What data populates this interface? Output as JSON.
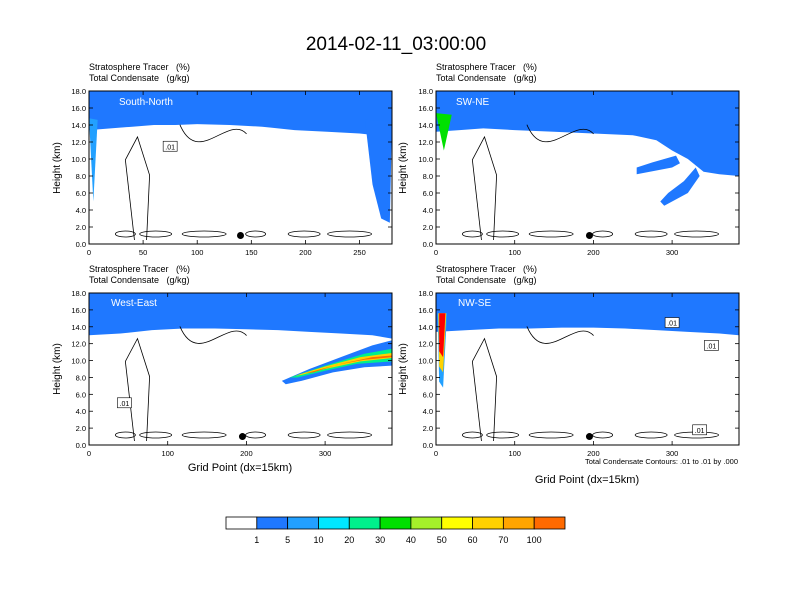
{
  "figure": {
    "title": "2014-02-11_03:00:00",
    "footnote": "Total Condensate Contours: .01 to .01 by .000"
  },
  "colors": {
    "background": "#ffffff",
    "contour_line": "#000000",
    "palette": [
      "#ffffff",
      "#1f78ff",
      "#22a0ff",
      "#00e7ff",
      "#00f08c",
      "#00e000",
      "#a5f02a",
      "#ffff00",
      "#ffd200",
      "#ffa500",
      "#ff6a00",
      "#ff0000"
    ]
  },
  "chart_data": {
    "type": "heatmap",
    "variables": {
      "fill": "Stratosphere Tracer   (%)",
      "contour": "Total Condensate   (g/kg)"
    },
    "colorbar": {
      "levels": [
        "1",
        "5",
        "10",
        "20",
        "30",
        "40",
        "50",
        "60",
        "70",
        "100"
      ],
      "bins": 11
    },
    "ylabel": "Height (km)",
    "xlabel": "Grid Point (dx=15km)",
    "ylim": [
      0,
      18
    ],
    "yticks": [
      "0.0",
      "2.0",
      "4.0",
      "6.0",
      "8.0",
      "10.0",
      "12.0",
      "14.0",
      "16.0",
      "18.0"
    ],
    "panels": [
      {
        "label": "South-North",
        "xlim": [
          0,
          280
        ],
        "xticks": [
          0,
          50,
          100,
          150,
          200,
          250
        ],
        "marker": {
          "x": 140,
          "y": 1.0
        },
        "contour_labels": [
          {
            "text": ".01",
            "x": 75,
            "y": 11.5
          }
        ],
        "tropopause": [
          [
            0,
            15.4
          ],
          [
            20,
            15.6
          ],
          [
            40,
            15.8
          ],
          [
            60,
            16.0
          ],
          [
            80,
            16.0
          ],
          [
            100,
            16.1
          ],
          [
            130,
            16.0
          ],
          [
            160,
            15.8
          ],
          [
            190,
            15.4
          ],
          [
            220,
            15.2
          ],
          [
            250,
            15.0
          ],
          [
            265,
            14.8
          ],
          [
            280,
            14.6
          ]
        ],
        "intrusions": [
          {
            "layers": [
              [
                0,
                13.5,
                "#22a0ff"
              ]
            ],
            "profile": [
              [
                0,
                14.8
              ],
              [
                4,
                5.0
              ],
              [
                8,
                14.6
              ]
            ]
          },
          {
            "layers": [
              [
                0,
                12.0,
                "#1f78ff"
              ]
            ],
            "profile": [
              [
                255,
                14.6
              ],
              [
                262,
                7.0
              ],
              [
                270,
                3.0
              ],
              [
                278,
                2.5
              ],
              [
                280,
                14.5
              ]
            ]
          }
        ],
        "blobs": []
      },
      {
        "label": "SW-NE",
        "xlim": [
          0,
          385
        ],
        "xticks": [
          0,
          100,
          200,
          300
        ],
        "marker": {
          "x": 195,
          "y": 1.0
        },
        "contour_labels": [],
        "tropopause": [
          [
            0,
            15.2
          ],
          [
            30,
            15.4
          ],
          [
            60,
            15.6
          ],
          [
            100,
            15.4
          ],
          [
            150,
            15.2
          ],
          [
            200,
            15.0
          ],
          [
            250,
            14.8
          ],
          [
            280,
            14.2
          ],
          [
            300,
            13.0
          ],
          [
            320,
            12.0
          ],
          [
            340,
            10.5
          ],
          [
            360,
            10.2
          ],
          [
            385,
            10.0
          ]
        ],
        "intrusions": [
          {
            "layers": [
              [
                0,
                14.0,
                "#00e000"
              ]
            ],
            "profile": [
              [
                0,
                15.4
              ],
              [
                10,
                11.0
              ],
              [
                20,
                15.2
              ]
            ]
          }
        ],
        "blobs": [
          {
            "color": "#1f78ff",
            "points": [
              [
                255,
                8.2
              ],
              [
                300,
                9.0
              ],
              [
                310,
                9.5
              ],
              [
                305,
                10.4
              ],
              [
                275,
                9.6
              ],
              [
                255,
                9.0
              ]
            ]
          },
          {
            "color": "#1f78ff",
            "points": [
              [
                290,
                4.5
              ],
              [
                320,
                6.0
              ],
              [
                335,
                8.0
              ],
              [
                330,
                9.0
              ],
              [
                315,
                7.4
              ],
              [
                295,
                6.0
              ],
              [
                285,
                5.0
              ]
            ]
          }
        ]
      },
      {
        "label": "West-East",
        "xlim": [
          0,
          385
        ],
        "xticks": [
          0,
          100,
          200,
          300
        ],
        "marker": {
          "x": 195,
          "y": 1.0
        },
        "contour_labels": [
          {
            "text": ".01",
            "x": 45,
            "y": 5.0
          }
        ],
        "tropopause": [
          [
            0,
            15.0
          ],
          [
            40,
            15.2
          ],
          [
            80,
            15.6
          ],
          [
            120,
            15.8
          ],
          [
            160,
            15.8
          ],
          [
            200,
            15.7
          ],
          [
            240,
            15.6
          ],
          [
            280,
            15.4
          ],
          [
            320,
            15.2
          ],
          [
            360,
            15.0
          ],
          [
            385,
            14.6
          ]
        ],
        "intrusions": [],
        "blobs": [
          {
            "color": "#1f78ff",
            "points": [
              [
                245,
                7.6
              ],
              [
                280,
                9.0
              ],
              [
                320,
                10.4
              ],
              [
                360,
                11.8
              ],
              [
                385,
                12.4
              ],
              [
                385,
                9.4
              ],
              [
                350,
                9.2
              ],
              [
                310,
                8.6
              ],
              [
                270,
                7.6
              ],
              [
                250,
                7.2
              ]
            ]
          },
          {
            "color": "#00f08c",
            "points": [
              [
                255,
                8.0
              ],
              [
                300,
                9.4
              ],
              [
                350,
                10.8
              ],
              [
                385,
                11.4
              ],
              [
                385,
                9.9
              ],
              [
                340,
                9.6
              ],
              [
                300,
                8.8
              ],
              [
                265,
                8.0
              ]
            ]
          },
          {
            "color": "#ffd200",
            "points": [
              [
                262,
                8.2
              ],
              [
                300,
                9.3
              ],
              [
                345,
                10.4
              ],
              [
                385,
                10.9
              ],
              [
                385,
                10.3
              ],
              [
                345,
                9.9
              ],
              [
                300,
                9.0
              ],
              [
                270,
                8.3
              ]
            ]
          },
          {
            "color": "#ff6a00",
            "points": [
              [
                275,
                8.5
              ],
              [
                320,
                9.6
              ],
              [
                360,
                10.4
              ],
              [
                385,
                10.6
              ],
              [
                385,
                10.4
              ],
              [
                350,
                10.1
              ],
              [
                315,
                9.5
              ],
              [
                285,
                8.6
              ]
            ]
          }
        ]
      },
      {
        "label": "NW-SE",
        "xlim": [
          0,
          385
        ],
        "xticks": [
          0,
          100,
          200,
          300
        ],
        "marker": {
          "x": 195,
          "y": 1.0
        },
        "contour_labels": [
          {
            "text": ".01",
            "x": 300,
            "y": 14.5
          },
          {
            "text": ".01",
            "x": 350,
            "y": 11.8
          },
          {
            "text": ".01",
            "x": 335,
            "y": 1.8
          }
        ],
        "tropopause": [
          [
            0,
            15.4
          ],
          [
            40,
            15.6
          ],
          [
            80,
            15.8
          ],
          [
            120,
            15.8
          ],
          [
            160,
            15.9
          ],
          [
            200,
            15.9
          ],
          [
            240,
            15.8
          ],
          [
            280,
            15.6
          ],
          [
            320,
            15.4
          ],
          [
            360,
            15.2
          ],
          [
            385,
            15.0
          ]
        ],
        "intrusions": [
          {
            "layers": [
              [
                0,
                12.0,
                "#22a0ff"
              ],
              [
                1,
                9.0,
                "#ffd200"
              ],
              [
                2,
                7.0,
                "#ff0000"
              ]
            ],
            "profile": [
              [
                2,
                15.6
              ],
              [
                4,
                7.5
              ],
              [
                9,
                6.8
              ],
              [
                14,
                15.6
              ]
            ]
          }
        ],
        "blobs": []
      }
    ]
  }
}
